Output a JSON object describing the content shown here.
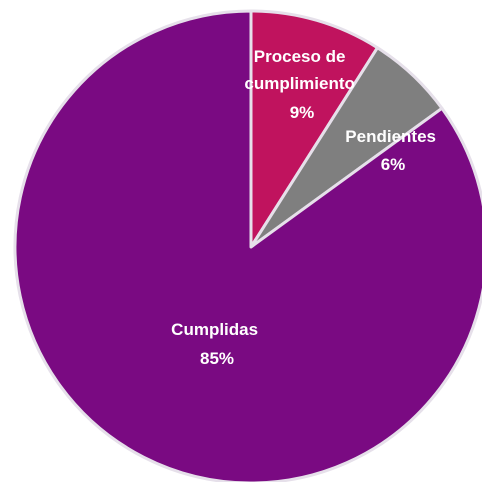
{
  "chart_data": {
    "type": "pie",
    "slices": [
      {
        "label_lines": [
          "Proceso de",
          "cumplimiento"
        ],
        "value": 9,
        "value_label": "9%",
        "color": "#c0135e"
      },
      {
        "label_lines": [
          "Pendientes"
        ],
        "value": 6,
        "value_label": "6%",
        "color": "#7f7f7f"
      },
      {
        "label_lines": [
          "Cumplidas"
        ],
        "value": 85,
        "value_label": "85%",
        "color": "#7a0a82"
      }
    ],
    "start": "12 o'clock",
    "direction": "clockwise",
    "legend": "none"
  }
}
